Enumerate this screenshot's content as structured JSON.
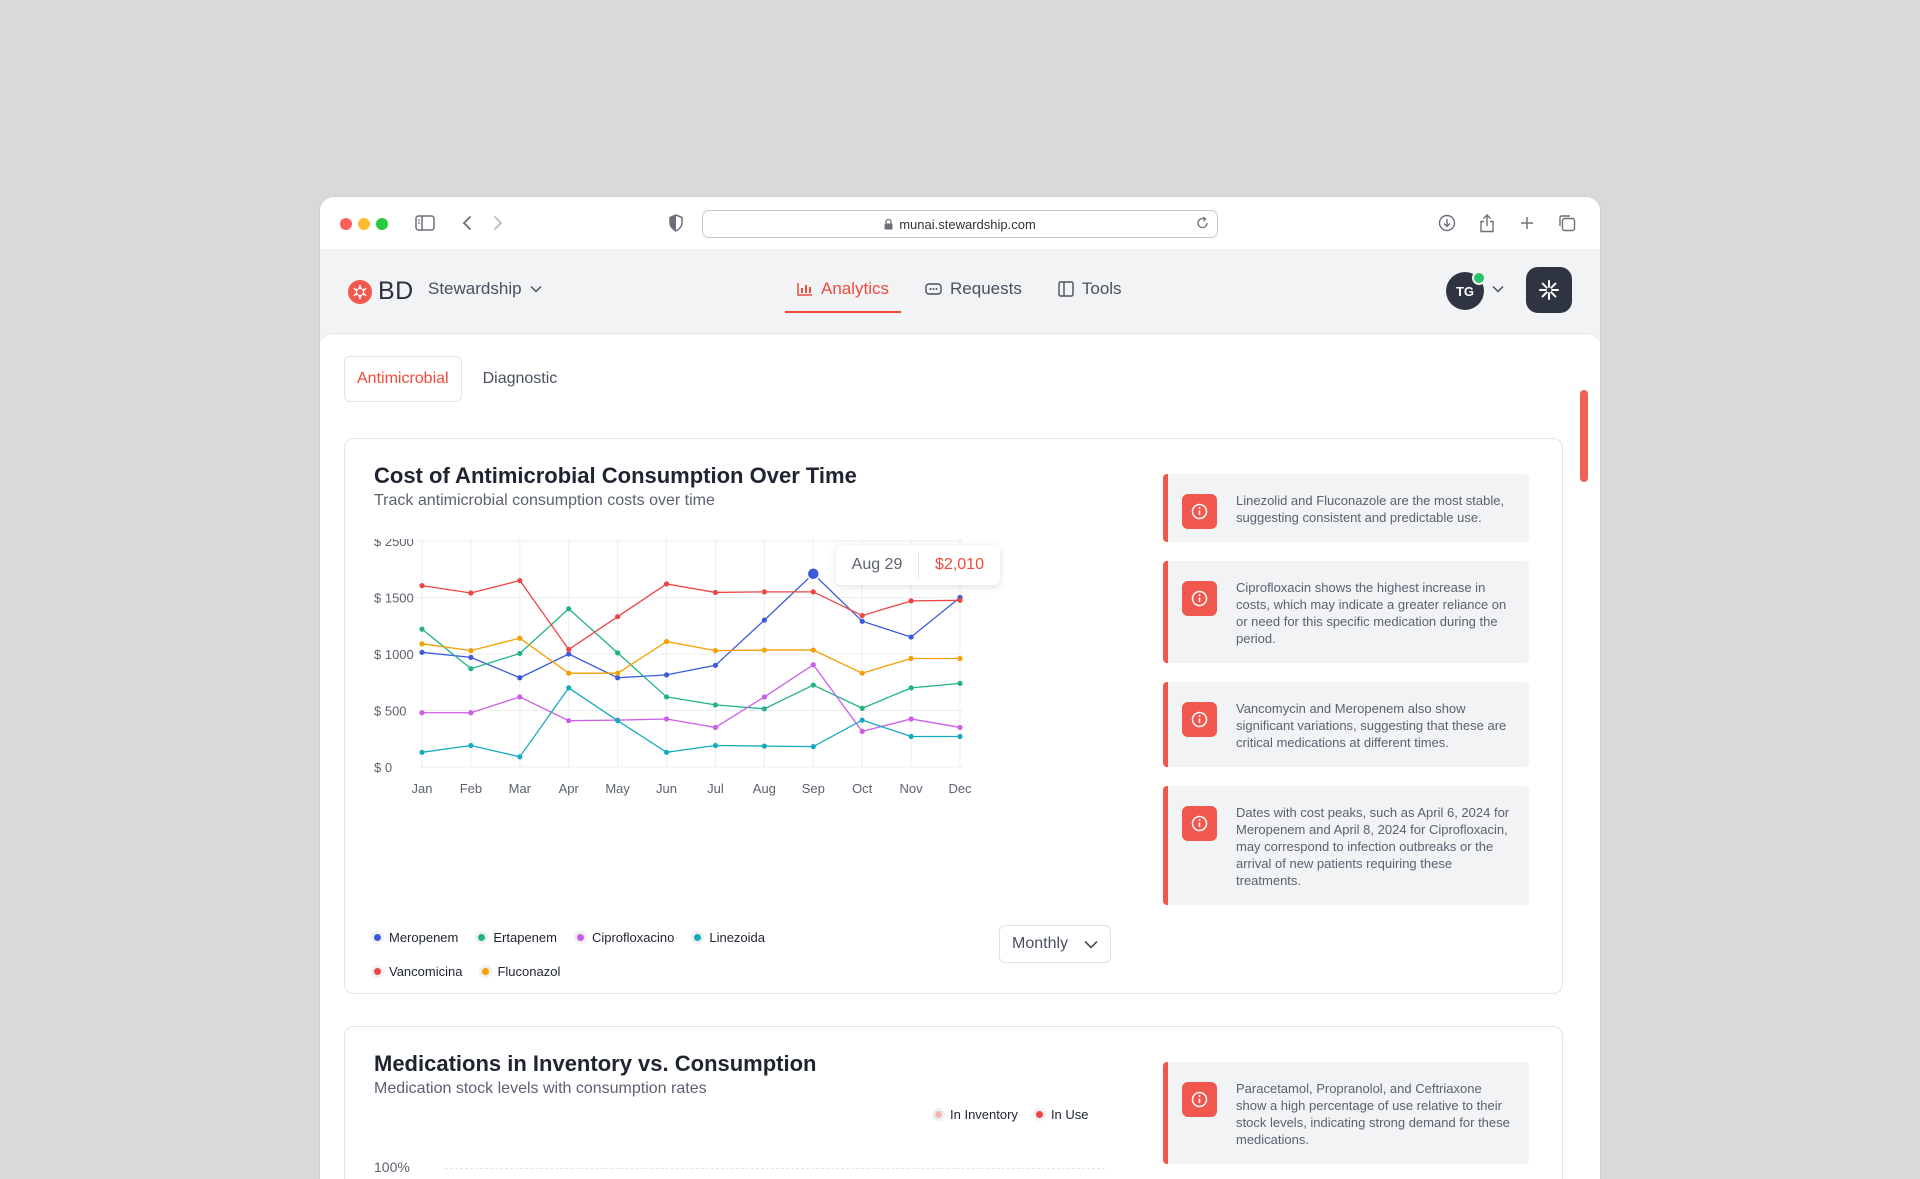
{
  "browser": {
    "url": "munai.stewardship.com"
  },
  "header": {
    "logo_text": "BD",
    "product": "Stewardship",
    "nav": [
      {
        "label": "Analytics",
        "active": true
      },
      {
        "label": "Requests"
      },
      {
        "label": "Tools"
      }
    ],
    "avatar_initials": "TG"
  },
  "tabs": {
    "antimicrobial": "Antimicrobial",
    "diagnostic": "Diagnostic"
  },
  "card1": {
    "title": "Cost of Antimicrobial Consumption Over Time",
    "subtitle": "Track antimicrobial consumption costs over time",
    "tooltip": {
      "date": "Aug 29",
      "value": "$2,010"
    },
    "period_select": "Monthly",
    "insights": [
      "Linezolid and Fluconazole are the most stable, suggesting consistent and predictable use.",
      "Ciprofloxacin shows the highest increase in costs, which may indicate a greater reliance on or need for this specific medication during the period.",
      "Vancomycin and Meropenem also show significant variations, suggesting that these are critical medications at different times.",
      "Dates with cost peaks, such as April 6, 2024 for Meropenem and April 8, 2024 for Ciprofloxacin, may correspond to infection outbreaks or the arrival of new patients requiring these treatments."
    ]
  },
  "card2": {
    "title": "Medications in Inventory vs. Consumption",
    "subtitle": "Medication stock levels with consumption rates",
    "legend": [
      {
        "label": "In Inventory",
        "color": "#f6b7b2"
      },
      {
        "label": "In Use",
        "color": "#ef4444"
      }
    ],
    "y_top_label": "100%",
    "insight": "Paracetamol, Propranolol, and Ceftriaxone show a high percentage of use relative to their stock levels, indicating strong demand for these medications."
  },
  "chart_data": {
    "type": "line",
    "categories": [
      "Jan",
      "Feb",
      "Mar",
      "Apr",
      "May",
      "Jun",
      "Jul",
      "Aug",
      "Sep",
      "Oct",
      "Nov",
      "Dec"
    ],
    "y_tick_labels": [
      "$ 0",
      "$ 500",
      "$ 1000",
      "$ 1500",
      "$ 2500"
    ],
    "ylim": [
      0,
      2500
    ],
    "grid": true,
    "series": [
      {
        "name": "Meropenem",
        "color": "#3b5bdb",
        "values": [
          1015,
          970,
          790,
          1000,
          790,
          815,
          900,
          1300,
          1710,
          1290,
          1150,
          1500
        ]
      },
      {
        "name": "Ertapenem",
        "color": "#20b486",
        "values": [
          1220,
          870,
          1005,
          1400,
          1010,
          620,
          550,
          515,
          725,
          520,
          700,
          740
        ]
      },
      {
        "name": "Ciprofloxacino",
        "color": "#cc5de8",
        "values": [
          480,
          480,
          620,
          410,
          415,
          425,
          350,
          620,
          905,
          315,
          425,
          350
        ]
      },
      {
        "name": "Linezoida",
        "color": "#15aabf",
        "values": [
          130,
          190,
          90,
          700,
          410,
          130,
          190,
          185,
          180,
          415,
          270,
          270
        ]
      },
      {
        "name": "Vancomicina",
        "color": "#ef4444",
        "values": [
          1605,
          1540,
          1650,
          1040,
          1330,
          1620,
          1545,
          1550,
          1550,
          1340,
          1470,
          1475
        ]
      },
      {
        "name": "Fluconazol",
        "color": "#f59f00",
        "values": [
          1090,
          1030,
          1140,
          830,
          830,
          1110,
          1030,
          1035,
          1035,
          830,
          960,
          960
        ]
      }
    ],
    "highlight": {
      "series": "Meropenem",
      "category": "Sep"
    }
  }
}
